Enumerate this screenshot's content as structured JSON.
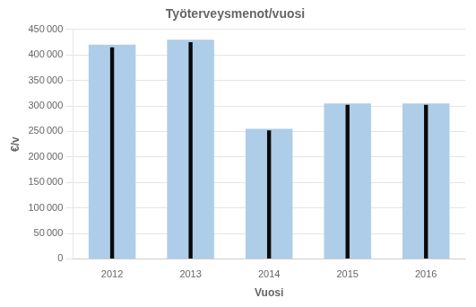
{
  "chart_data": {
    "type": "bar",
    "title": "Työterveysmenot/vuosi",
    "xlabel": "Vuosi",
    "ylabel": "€/v",
    "categories": [
      "2012",
      "2013",
      "2014",
      "2015",
      "2016"
    ],
    "series": [
      {
        "color": "#aecde8",
        "values": [
          420000,
          430000,
          255000,
          305000,
          305000
        ]
      },
      {
        "color": "#0a0a0a",
        "values": [
          415000,
          425000,
          252000,
          302000,
          302000
        ]
      }
    ],
    "ylim": [
      0,
      450000
    ],
    "yticks": [
      0,
      {
        "value": 50000,
        "label": "50 000"
      },
      {
        "value": 100000,
        "label": "100 000"
      },
      {
        "value": 150000,
        "label": "150 000"
      },
      {
        "value": 200000,
        "label": "200 000"
      },
      {
        "value": 250000,
        "label": "250 000"
      },
      {
        "value": 300000,
        "label": "300 000"
      },
      {
        "value": 350000,
        "label": "350 000"
      },
      {
        "value": 400000,
        "label": "400 000"
      },
      {
        "value": 450000,
        "label": "450 000"
      }
    ],
    "grid": true
  }
}
